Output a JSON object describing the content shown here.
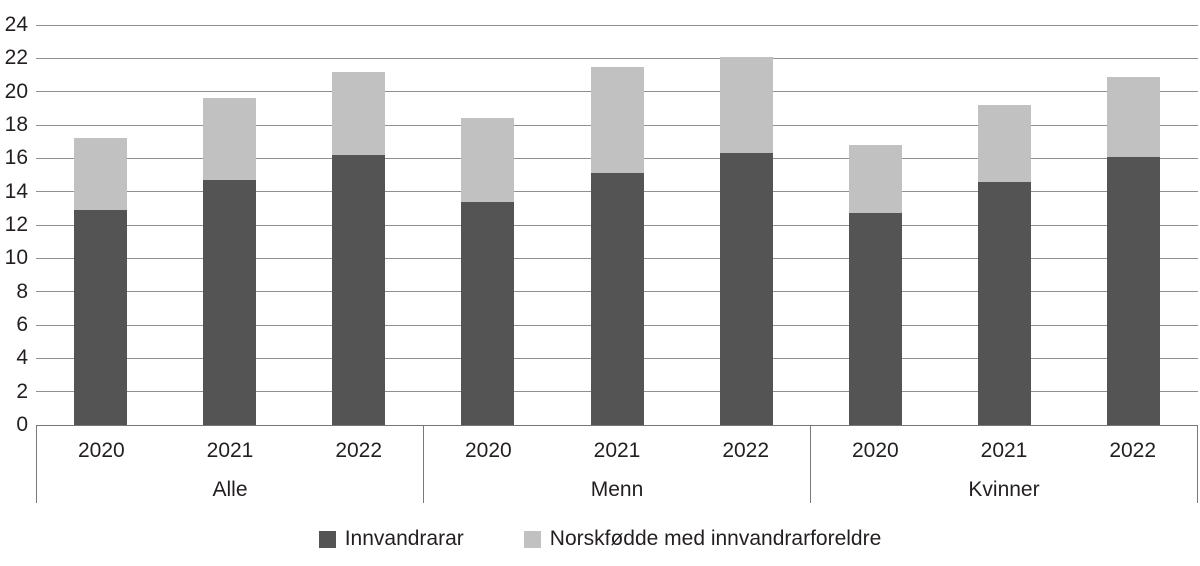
{
  "chart_data": {
    "type": "bar",
    "stacked": true,
    "title": "",
    "xlabel": "",
    "ylabel": "",
    "ylim": [
      0,
      24
    ],
    "ytick_step": 2,
    "yticks": [
      0,
      2,
      4,
      6,
      8,
      10,
      12,
      14,
      16,
      18,
      20,
      22,
      24
    ],
    "grid": "horizontal",
    "legend_position": "bottom",
    "groups": [
      {
        "label": "Alle",
        "years": [
          "2020",
          "2021",
          "2022"
        ]
      },
      {
        "label": "Menn",
        "years": [
          "2020",
          "2021",
          "2022"
        ]
      },
      {
        "label": "Kvinner",
        "years": [
          "2020",
          "2021",
          "2022"
        ]
      }
    ],
    "series": [
      {
        "name": "Innvandrarar",
        "color": "#555454",
        "values": [
          [
            12.9,
            14.7,
            16.2
          ],
          [
            13.4,
            15.1,
            16.3
          ],
          [
            12.7,
            14.6,
            16.1
          ]
        ]
      },
      {
        "name": "Norskfødde med innvandrarforeldre",
        "color": "#c2c1c1",
        "values": [
          [
            4.3,
            4.9,
            5.0
          ],
          [
            5.0,
            6.4,
            5.8
          ],
          [
            4.1,
            4.6,
            4.8
          ]
        ]
      }
    ],
    "colors": {
      "text": "#231f20",
      "gridline": "#8f8f8f",
      "axis_box": "#7a7a7a"
    }
  }
}
